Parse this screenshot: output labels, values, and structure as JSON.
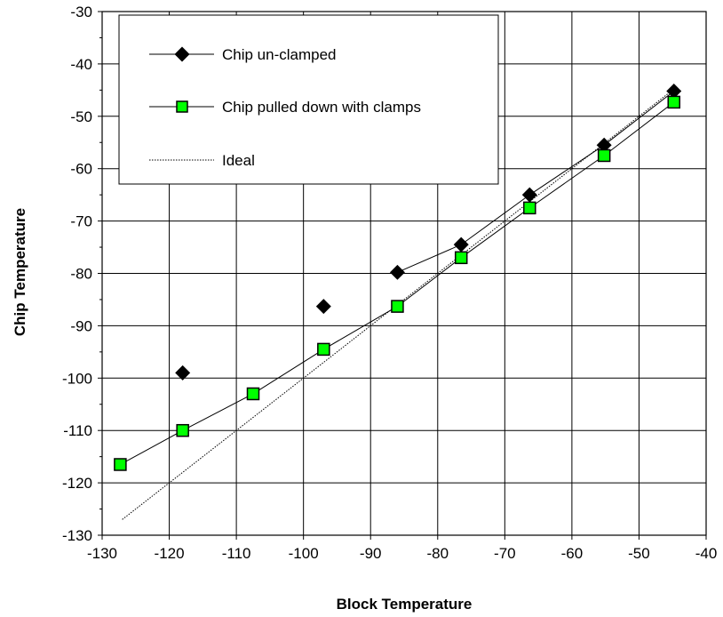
{
  "chart_data": {
    "type": "line",
    "xlabel": "Block Temperature",
    "ylabel": "Chip Temperature",
    "xlim": [
      -130,
      -40
    ],
    "ylim": [
      -130,
      -30
    ],
    "xticks": [
      -130,
      -120,
      -110,
      -100,
      -90,
      -80,
      -70,
      -60,
      -50,
      -40
    ],
    "yticks": [
      -30,
      -40,
      -50,
      -60,
      -70,
      -80,
      -90,
      -100,
      -110,
      -120,
      -130
    ],
    "grid": true,
    "legend_position": "top-left",
    "series": [
      {
        "name": "Chip un-clamped",
        "marker": "diamond",
        "color": "#000000",
        "points": [
          {
            "x": -118,
            "y": -99,
            "connected": false
          },
          {
            "x": -97,
            "y": -86.3,
            "connected": false
          },
          {
            "x": -86,
            "y": -79.8,
            "connected": true
          },
          {
            "x": -76.5,
            "y": -74.5,
            "connected": true
          },
          {
            "x": -66.3,
            "y": -65,
            "connected": true
          },
          {
            "x": -55.2,
            "y": -55.5,
            "connected": true
          },
          {
            "x": -44.8,
            "y": -45.2,
            "connected": true
          }
        ]
      },
      {
        "name": "Chip pulled down with clamps",
        "marker": "square",
        "color": "#00ff00",
        "points": [
          {
            "x": -127.3,
            "y": -116.5,
            "connected": true
          },
          {
            "x": -118,
            "y": -110,
            "connected": true
          },
          {
            "x": -107.5,
            "y": -103,
            "connected": true
          },
          {
            "x": -97,
            "y": -94.5,
            "connected": true
          },
          {
            "x": -86,
            "y": -86.3,
            "connected": true
          },
          {
            "x": -76.5,
            "y": -77,
            "connected": true
          },
          {
            "x": -66.3,
            "y": -67.5,
            "connected": true
          },
          {
            "x": -55.2,
            "y": -57.5,
            "connected": true
          },
          {
            "x": -44.8,
            "y": -47.3,
            "connected": true
          }
        ]
      },
      {
        "name": "Ideal",
        "marker": "none",
        "style": "dotted",
        "color": "#000000",
        "points": [
          {
            "x": -127,
            "y": -127,
            "connected": true
          },
          {
            "x": -45,
            "y": -45,
            "connected": true
          }
        ]
      }
    ]
  }
}
